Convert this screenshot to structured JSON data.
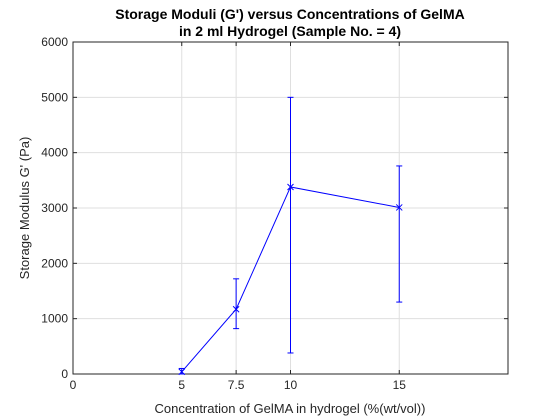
{
  "chart_data": {
    "type": "line",
    "title_lines": [
      "Storage Moduli (G') versus Concentrations of GelMA",
      "in 2 ml Hydrogel (Sample No. = 4)"
    ],
    "xlabel": "Concentration of GelMA in hydrogel (%(wt/vol))",
    "ylabel": "Storage Modulus G' (Pa)",
    "xlim": [
      0,
      20
    ],
    "ylim": [
      0,
      6000
    ],
    "xticks": [
      0,
      5,
      7.5,
      10,
      15
    ],
    "xtick_labels": [
      "0",
      "5",
      "7.5",
      "10",
      "15"
    ],
    "yticks": [
      0,
      1000,
      2000,
      3000,
      4000,
      5000,
      6000
    ],
    "ytick_labels": [
      "0",
      "1000",
      "2000",
      "3000",
      "4000",
      "5000",
      "6000"
    ],
    "grid": true,
    "series": [
      {
        "x": [
          5,
          7.5,
          10,
          15
        ],
        "y": [
          40,
          1170,
          3380,
          3010
        ],
        "err_low": [
          0,
          820,
          380,
          1300
        ],
        "err_high": [
          100,
          1720,
          5000,
          3760
        ],
        "marker": "x",
        "color": "#0000ff"
      }
    ]
  }
}
